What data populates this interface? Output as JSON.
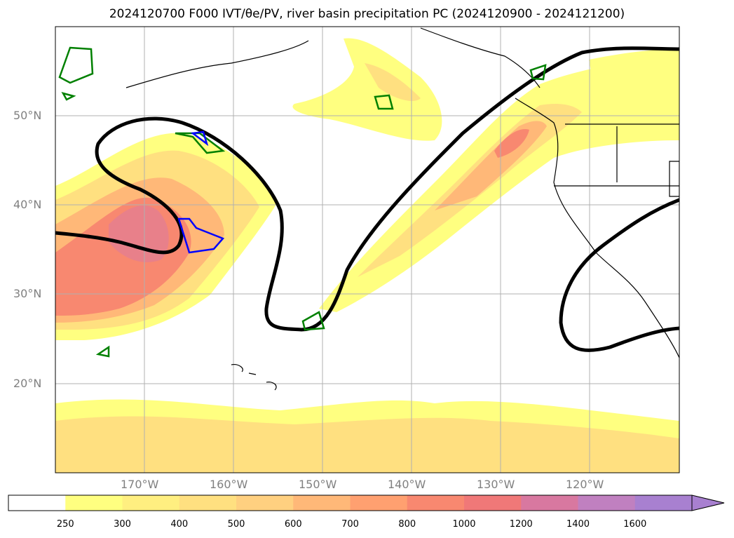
{
  "title": "2024120700 F000 IVT/θe/PV, river basin precipitation PC (2024120900 - 2024121200)",
  "lat_labels": [
    "50°N",
    "40°N",
    "30°N",
    "20°N"
  ],
  "lon_labels": [
    "170°W",
    "160°W",
    "150°W",
    "140°W",
    "130°W",
    "120°W"
  ],
  "colorbar": {
    "ticks": [
      "250",
      "300",
      "400",
      "500",
      "600",
      "700",
      "800",
      "1000",
      "1200",
      "1400",
      "1600"
    ],
    "colors": [
      "#ffff80",
      "#ffef80",
      "#ffe080",
      "#ffd080",
      "#ffb878",
      "#ffa070",
      "#f88870",
      "#f07878",
      "#d878a0",
      "#c080c0",
      "#a880d0"
    ],
    "extend": "max"
  }
}
